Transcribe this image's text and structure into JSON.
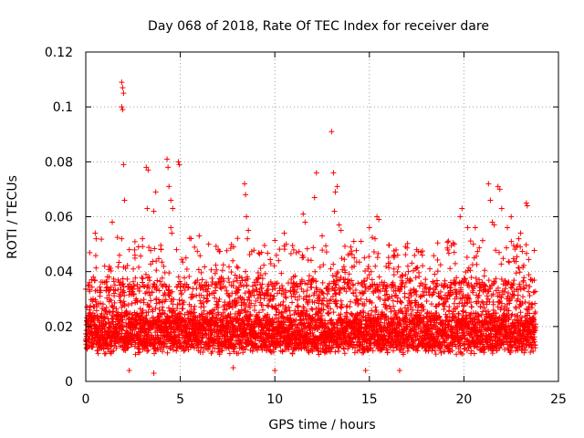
{
  "chart_data": {
    "type": "scatter",
    "title": "Day 068 of 2018, Rate Of TEC Index for receiver dare",
    "xlabel": "GPS time / hours",
    "ylabel": "ROTI / TECUs",
    "xlim": [
      0,
      25
    ],
    "ylim": [
      0,
      0.12
    ],
    "xticks": [
      0,
      5,
      10,
      15,
      20,
      25
    ],
    "xtick_labels": [
      "0",
      "5",
      "10",
      "15",
      "20",
      "25"
    ],
    "yticks": [
      0,
      0.02,
      0.04,
      0.06,
      0.08,
      0.1,
      0.12
    ],
    "ytick_labels": [
      "0",
      "0.02",
      "0.04",
      "0.06",
      "0.08",
      "0.1",
      "0.12"
    ],
    "grid": true,
    "marker": "+",
    "marker_color": "#ff0000",
    "series": [
      {
        "name": "ROTI",
        "x_range": [
          0,
          23.8
        ],
        "baseline_band": [
          0.005,
          0.025
        ],
        "points": [
          {
            "x": 1.9,
            "y": 0.109
          },
          {
            "x": 1.95,
            "y": 0.107
          },
          {
            "x": 2.0,
            "y": 0.105
          },
          {
            "x": 1.9,
            "y": 0.1
          },
          {
            "x": 1.95,
            "y": 0.099
          },
          {
            "x": 2.0,
            "y": 0.079
          },
          {
            "x": 2.05,
            "y": 0.066
          },
          {
            "x": 1.9,
            "y": 0.052
          },
          {
            "x": 1.4,
            "y": 0.058
          },
          {
            "x": 3.2,
            "y": 0.078
          },
          {
            "x": 3.3,
            "y": 0.077
          },
          {
            "x": 3.25,
            "y": 0.063
          },
          {
            "x": 3.6,
            "y": 0.062
          },
          {
            "x": 3.7,
            "y": 0.069
          },
          {
            "x": 4.3,
            "y": 0.081
          },
          {
            "x": 4.35,
            "y": 0.078
          },
          {
            "x": 4.4,
            "y": 0.071
          },
          {
            "x": 4.5,
            "y": 0.066
          },
          {
            "x": 4.6,
            "y": 0.063
          },
          {
            "x": 4.9,
            "y": 0.08
          },
          {
            "x": 4.95,
            "y": 0.079
          },
          {
            "x": 4.5,
            "y": 0.056
          },
          {
            "x": 4.55,
            "y": 0.054
          },
          {
            "x": 0.5,
            "y": 0.054
          },
          {
            "x": 0.55,
            "y": 0.052
          },
          {
            "x": 6.0,
            "y": 0.053
          },
          {
            "x": 6.5,
            "y": 0.05
          },
          {
            "x": 7.0,
            "y": 0.048
          },
          {
            "x": 8.4,
            "y": 0.072
          },
          {
            "x": 8.45,
            "y": 0.068
          },
          {
            "x": 8.5,
            "y": 0.06
          },
          {
            "x": 8.6,
            "y": 0.055
          },
          {
            "x": 8.55,
            "y": 0.052
          },
          {
            "x": 10.5,
            "y": 0.054
          },
          {
            "x": 11.5,
            "y": 0.061
          },
          {
            "x": 11.6,
            "y": 0.058
          },
          {
            "x": 12.2,
            "y": 0.076
          },
          {
            "x": 12.1,
            "y": 0.067
          },
          {
            "x": 12.5,
            "y": 0.053
          },
          {
            "x": 13.0,
            "y": 0.091
          },
          {
            "x": 13.1,
            "y": 0.076
          },
          {
            "x": 13.2,
            "y": 0.069
          },
          {
            "x": 13.3,
            "y": 0.071
          },
          {
            "x": 13.15,
            "y": 0.062
          },
          {
            "x": 13.4,
            "y": 0.057
          },
          {
            "x": 13.5,
            "y": 0.055
          },
          {
            "x": 15.0,
            "y": 0.056
          },
          {
            "x": 15.4,
            "y": 0.06
          },
          {
            "x": 15.5,
            "y": 0.059
          },
          {
            "x": 15.3,
            "y": 0.052
          },
          {
            "x": 16.5,
            "y": 0.046
          },
          {
            "x": 17.5,
            "y": 0.048
          },
          {
            "x": 17.8,
            "y": 0.046
          },
          {
            "x": 19.5,
            "y": 0.05
          },
          {
            "x": 19.9,
            "y": 0.063
          },
          {
            "x": 19.8,
            "y": 0.06
          },
          {
            "x": 20.2,
            "y": 0.056
          },
          {
            "x": 20.6,
            "y": 0.056
          },
          {
            "x": 20.5,
            "y": 0.05
          },
          {
            "x": 21.3,
            "y": 0.072
          },
          {
            "x": 21.4,
            "y": 0.066
          },
          {
            "x": 21.5,
            "y": 0.058
          },
          {
            "x": 21.6,
            "y": 0.057
          },
          {
            "x": 21.8,
            "y": 0.071
          },
          {
            "x": 21.9,
            "y": 0.07
          },
          {
            "x": 22.0,
            "y": 0.063
          },
          {
            "x": 22.3,
            "y": 0.056
          },
          {
            "x": 22.9,
            "y": 0.052
          },
          {
            "x": 23.3,
            "y": 0.065
          },
          {
            "x": 23.35,
            "y": 0.064
          },
          {
            "x": 23.0,
            "y": 0.054
          },
          {
            "x": 9.3,
            "y": 0.047
          },
          {
            "x": 10.2,
            "y": 0.044
          },
          {
            "x": 14.2,
            "y": 0.045
          },
          {
            "x": 16.0,
            "y": 0.043
          },
          {
            "x": 18.2,
            "y": 0.041
          },
          {
            "x": 5.3,
            "y": 0.045
          },
          {
            "x": 2.6,
            "y": 0.046
          },
          {
            "x": 1.0,
            "y": 0.042
          },
          {
            "x": 0.2,
            "y": 0.036
          },
          {
            "x": 22.5,
            "y": 0.06
          },
          {
            "x": 4.8,
            "y": 0.048
          },
          {
            "x": 3.0,
            "y": 0.052
          },
          {
            "x": 2.3,
            "y": 0.048
          },
          {
            "x": 10.0,
            "y": 0.004
          },
          {
            "x": 2.3,
            "y": 0.004
          },
          {
            "x": 3.6,
            "y": 0.003
          },
          {
            "x": 7.8,
            "y": 0.005
          },
          {
            "x": 14.8,
            "y": 0.004
          },
          {
            "x": 16.6,
            "y": 0.004
          }
        ]
      }
    ]
  }
}
